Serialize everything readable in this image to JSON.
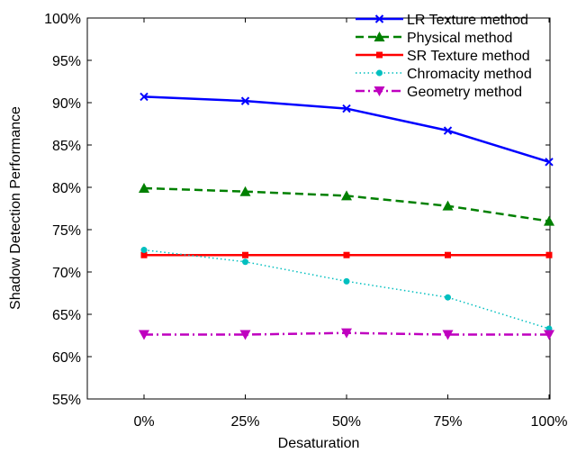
{
  "chart_data": {
    "type": "line",
    "xlabel": "Desaturation",
    "ylabel": "Shadow Detection Performance",
    "categories": [
      "0%",
      "25%",
      "50%",
      "75%",
      "100%"
    ],
    "yticks": [
      "55%",
      "60%",
      "65%",
      "70%",
      "75%",
      "80%",
      "85%",
      "90%",
      "95%",
      "100%"
    ],
    "ylim": [
      55,
      100
    ],
    "grid": false,
    "legend_position": "top-right",
    "series": [
      {
        "name": "LR Texture method",
        "values": [
          90.7,
          90.2,
          89.3,
          86.7,
          83.0
        ],
        "color": "#0000ff",
        "dash": "solid",
        "marker": "x"
      },
      {
        "name": "Physical method",
        "values": [
          79.9,
          79.5,
          79.0,
          77.8,
          76.0
        ],
        "color": "#008000",
        "dash": "dashed",
        "marker": "triangle-up"
      },
      {
        "name": "SR Texture method",
        "values": [
          72.0,
          72.0,
          72.0,
          72.0,
          72.0
        ],
        "color": "#ff0000",
        "dash": "solid",
        "marker": "square"
      },
      {
        "name": "Chromacity method",
        "values": [
          72.6,
          71.2,
          68.9,
          67.0,
          63.3
        ],
        "color": "#00bfbf",
        "dash": "dotted",
        "marker": "circle"
      },
      {
        "name": "Geometry method",
        "values": [
          62.6,
          62.6,
          62.8,
          62.6,
          62.6
        ],
        "color": "#bf00bf",
        "dash": "dashdot",
        "marker": "triangle-down"
      }
    ]
  }
}
